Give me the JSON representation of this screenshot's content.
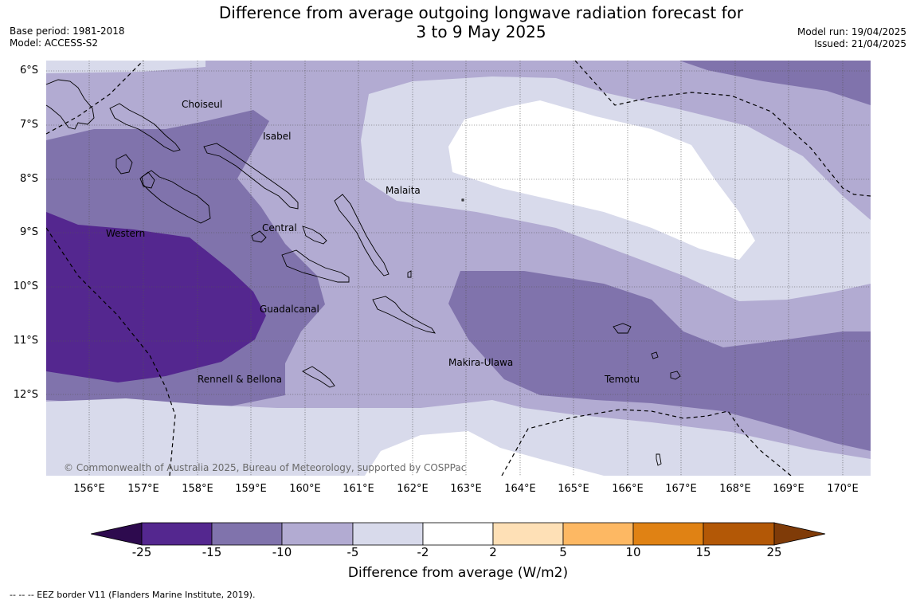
{
  "title": {
    "line1": "Difference from average outgoing longwave radiation forecast for",
    "line2": "3 to 9 May 2025"
  },
  "meta": {
    "base_period": "Base period: 1981-2018",
    "model": "Model: ACCESS-S2",
    "model_run": "Model run: 19/04/2025",
    "issued": "Issued: 21/04/2025"
  },
  "axes": {
    "latitude_labels": [
      "6°S",
      "7°S",
      "8°S",
      "9°S",
      "10°S",
      "11°S",
      "12°S"
    ],
    "longitude_labels": [
      "156°E",
      "157°E",
      "158°E",
      "159°E",
      "160°E",
      "161°E",
      "162°E",
      "163°E",
      "164°E",
      "165°E",
      "166°E",
      "167°E",
      "168°E",
      "169°E",
      "170°E"
    ]
  },
  "places": {
    "choiseul": "Choiseul",
    "isabel": "Isabel",
    "malaita": "Malaita",
    "western": "Western",
    "central": "Central",
    "guadalcanal": "Guadalcanal",
    "makira_ulawa": "Makira-Ulawa",
    "rennell_bellona": "Rennell & Bellona",
    "temotu": "Temotu"
  },
  "copyright": "© Commonwealth of Australia 2025, Bureau of Meteorology, supported by COSPPac",
  "colorbar": {
    "ticks": [
      "-25",
      "-15",
      "-10",
      "-5",
      "-2",
      "2",
      "5",
      "10",
      "15",
      "25"
    ],
    "colors": {
      "below_neg25": "#2d0a4e",
      "neg25_neg15": "#54278f",
      "neg15_neg10": "#8073ac",
      "neg10_neg5": "#b2abd2",
      "neg5_neg2": "#d8daeb",
      "neg2_2": "#ffffff",
      "p2_p5": "#fee0b6",
      "p5_p10": "#fdb863",
      "p10_p15": "#e08214",
      "p15_p25": "#b35806",
      "above_25": "#7f3b08"
    },
    "label": "Difference from average (W/m2)"
  },
  "eez_note": "--  --  -- EEZ border V11 (Flanders Marine Institute, 2019)."
}
